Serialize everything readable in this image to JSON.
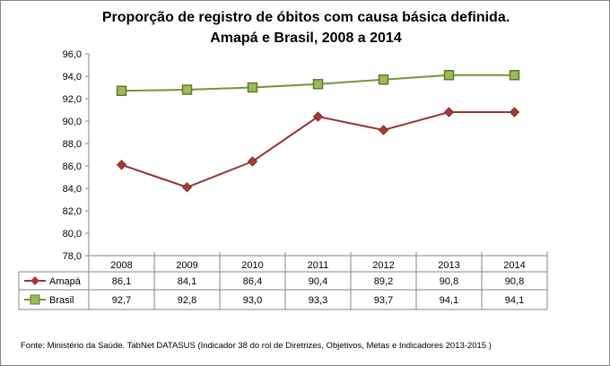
{
  "chart_data": {
    "type": "line",
    "title": [
      "Proporção de registro de óbitos com causa básica definida.",
      "Amapá e Brasil, 2008 a 2014"
    ],
    "categories": [
      "2008",
      "2009",
      "2010",
      "2011",
      "2012",
      "2013",
      "2014"
    ],
    "series": [
      {
        "name": "Amapá",
        "values": [
          86.1,
          84.1,
          86.4,
          90.4,
          89.2,
          90.8,
          90.8
        ],
        "labels": [
          "86,1",
          "84,1",
          "86,4",
          "90,4",
          "89,2",
          "90,8",
          "90,8"
        ],
        "color": "#953735",
        "marker": "diamond"
      },
      {
        "name": "Brasil",
        "values": [
          92.7,
          92.8,
          93.0,
          93.3,
          93.7,
          94.1,
          94.1
        ],
        "labels": [
          "92,7",
          "92,8",
          "93,0",
          "93,3",
          "93,7",
          "94,1",
          "94,1"
        ],
        "color": "#77933C",
        "marker": "square"
      }
    ],
    "ylim": [
      78,
      96
    ],
    "yticks": [
      "78,0",
      "80,0",
      "82,0",
      "84,0",
      "86,0",
      "88,0",
      "90,0",
      "92,0",
      "94,0",
      "96,0"
    ],
    "grid": false,
    "legend": "data-table"
  },
  "source": "Fonte: Ministério da Saúde. TabNet DATASUS (Indicador 38 do rol de Diretrizes, Objetivos, Metas e Indicadores 2013-2015 )"
}
